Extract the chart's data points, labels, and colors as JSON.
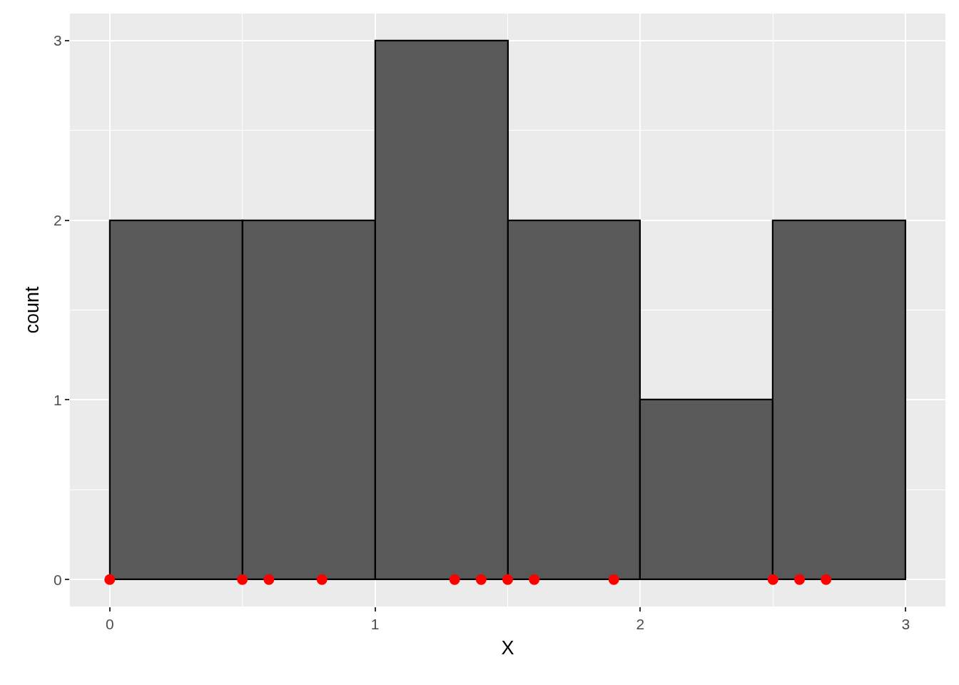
{
  "chart_data": {
    "type": "histogram",
    "xlabel": "X",
    "ylabel": "count",
    "bins": [
      0,
      0.5,
      1,
      1.5,
      2,
      2.5,
      3
    ],
    "values": [
      2,
      2,
      3,
      2,
      1,
      2
    ],
    "color": "#595959",
    "series": [
      {
        "type": "scatter",
        "x": [
          0,
          0.5,
          0.6,
          0.8,
          1.3,
          1.4,
          1.5,
          1.6,
          1.9,
          2.5,
          2.6,
          2.7
        ],
        "values": [
          0,
          0,
          0,
          0,
          0,
          0,
          0,
          0,
          0,
          0,
          0,
          0
        ],
        "color": "#ff0000",
        "marker": "circle"
      }
    ],
    "xlim": [
      -0.15,
      3.15
    ],
    "xticks": [
      0,
      1,
      2,
      3
    ],
    "ylim": [
      -0.15,
      3.15
    ],
    "yticks": [
      0,
      1,
      2,
      3
    ],
    "grid": true
  }
}
